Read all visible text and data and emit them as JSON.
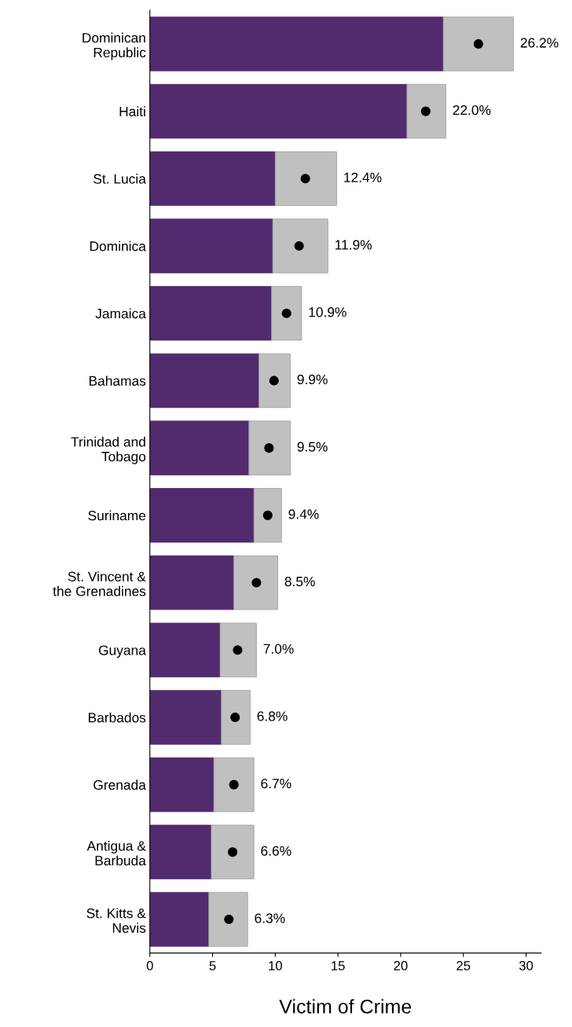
{
  "chart_data": {
    "type": "bar",
    "orientation": "horizontal",
    "stacked": true,
    "xlabel": "Victim of Crime",
    "categories": [
      "Dominican\nRepublic",
      "Haiti",
      "St. Lucia",
      "Dominica",
      "Jamaica",
      "Bahamas",
      "Trinidad and\nTobago",
      "Suriname",
      "St. Vincent &\nthe Grenadines",
      "Guyana",
      "Barbados",
      "Grenada",
      "Antigua &\nBarbuda",
      "St. Kitts &\nNevis"
    ],
    "series": [
      {
        "color": "#522a6e",
        "values": [
          23.4,
          20.5,
          10.0,
          9.8,
          9.7,
          8.7,
          7.9,
          8.3,
          6.7,
          5.6,
          5.7,
          5.1,
          4.9,
          4.7
        ]
      },
      {
        "color": "#c0c0c0",
        "values": [
          5.6,
          3.1,
          4.9,
          4.4,
          2.4,
          2.5,
          3.3,
          2.2,
          3.5,
          2.9,
          2.3,
          3.2,
          3.4,
          3.1
        ]
      },
      {
        "type": "scatter",
        "color": "#000000",
        "values": [
          26.2,
          22.0,
          12.4,
          11.9,
          10.9,
          9.9,
          9.5,
          9.4,
          8.5,
          7.0,
          6.8,
          6.7,
          6.6,
          6.3
        ],
        "value_labels": [
          "26.2%",
          "22.0%",
          "12.4%",
          "11.9%",
          "10.9%",
          "9.9%",
          "9.5%",
          "9.4%",
          "8.5%",
          "7.0%",
          "6.8%",
          "6.7%",
          "6.6%",
          "6.3%"
        ]
      }
    ],
    "xlim": [
      0,
      31.2
    ],
    "xticks": [
      0,
      5,
      10,
      15,
      20,
      25,
      30
    ],
    "grid": false,
    "legend": false,
    "marker": "circle"
  }
}
